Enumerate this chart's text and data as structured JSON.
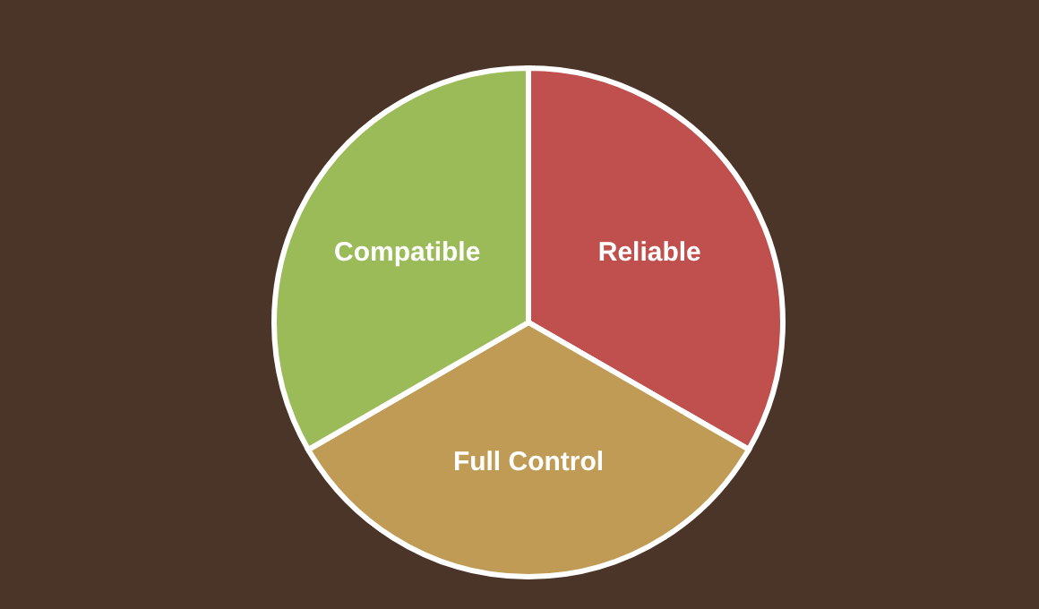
{
  "chart_data": {
    "type": "pie",
    "categories": [
      "Reliable",
      "Full Control",
      "Compatible"
    ],
    "values": [
      33.33,
      33.33,
      33.34
    ],
    "colors": [
      "#c0504d",
      "#c09b55",
      "#9bbb59"
    ]
  }
}
